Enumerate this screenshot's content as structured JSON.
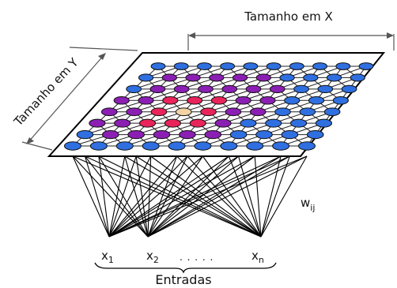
{
  "diagram": {
    "label_x_size": "Tamanho em X",
    "label_y_size": "Tamanho em Y",
    "weight": {
      "base": "w",
      "sub": "ij"
    },
    "inputs": [
      {
        "base": "x",
        "sub": "1"
      },
      {
        "base": "x",
        "sub": "2"
      },
      {
        "base": "x",
        "sub": "n"
      }
    ],
    "ellipsis": ". . . . .",
    "inputs_caption": "Entradas"
  },
  "grid": {
    "rows": 8,
    "cols": 10,
    "colors": {
      "default": "#2f6fe0",
      "winner": "#f2d3a6",
      "inner": "#e8245a",
      "outer": "#8b1fb3"
    },
    "cell_states": [
      [
        "default",
        "default",
        "default",
        "default",
        "default",
        "default",
        "default",
        "default",
        "default",
        "default"
      ],
      [
        "default",
        "outer",
        "outer",
        "outer",
        "outer",
        "outer",
        "default",
        "default",
        "default",
        "default"
      ],
      [
        "default",
        "outer",
        "outer",
        "outer",
        "outer",
        "outer",
        "outer",
        "default",
        "default",
        "default"
      ],
      [
        "outer",
        "outer",
        "inner",
        "inner",
        "inner",
        "outer",
        "outer",
        "default",
        "default",
        "default"
      ],
      [
        "outer",
        "outer",
        "inner",
        "winner",
        "inner",
        "outer",
        "outer",
        "default",
        "default",
        "default"
      ],
      [
        "outer",
        "outer",
        "inner",
        "inner",
        "inner",
        "outer",
        "default",
        "default",
        "default",
        "default"
      ],
      [
        "default",
        "outer",
        "outer",
        "outer",
        "outer",
        "outer",
        "default",
        "default",
        "default",
        "default"
      ],
      [
        "default",
        "default",
        "default",
        "default",
        "default",
        "default",
        "default",
        "default",
        "default",
        "default"
      ]
    ]
  },
  "connections": {
    "sources": [
      "x1",
      "x2",
      "xn"
    ],
    "target_rows": "front"
  }
}
